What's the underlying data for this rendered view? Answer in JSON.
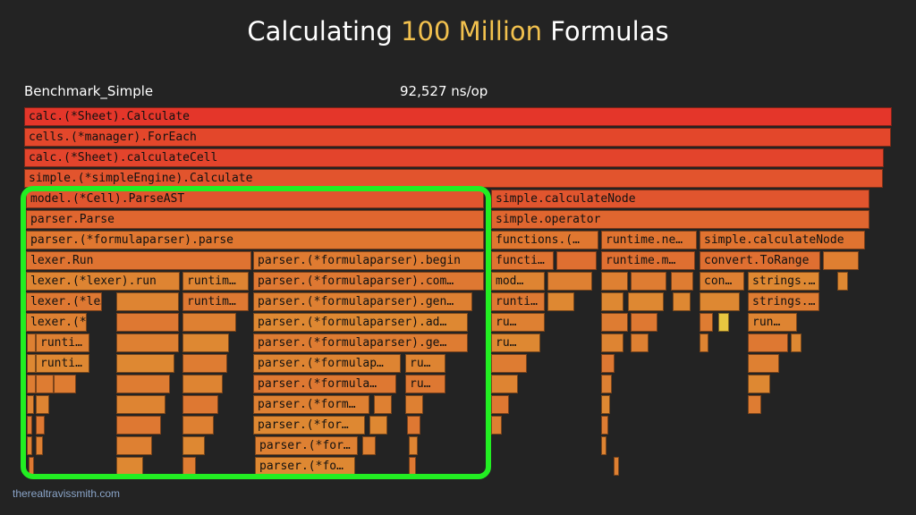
{
  "title": {
    "part1": "Calculating ",
    "highlight": "100 Million",
    "part2": " Formulas"
  },
  "benchmark": {
    "name": "Benchmark_Simple",
    "result": "92,527 ns/op"
  },
  "credit": "therealtravissmith.com",
  "colors": {
    "background": "#232323",
    "highlight_box": "#22ee22",
    "title_highlight": "#f2c14e"
  },
  "flame_labels": {
    "r0": "calc.(*Sheet).Calculate",
    "r1": "cells.(*manager).ForEach",
    "r2": "calc.(*Sheet).calculateCell",
    "r3": "simple.(*simpleEngine).Calculate",
    "r4a": "model.(*Cell).ParseAST",
    "r4b": "simple.calculateNode",
    "r5a": "parser.Parse",
    "r5b": "simple.operator",
    "r6a": "parser.(*formulaparser).parse",
    "r6b": "functions.(…",
    "r6c": "runtime.ne…",
    "r6d": "simple.calculateNode",
    "r7a": "lexer.Run",
    "r7b": "parser.(*formulaparser).begin",
    "r7c": "functi…",
    "r7d": "runtime.m…",
    "r7e": "convert.ToRange",
    "r8a": "lexer.(*lexer).run",
    "r8b": "runtim…",
    "r8c": "parser.(*formulaparser).com…",
    "r8d": "mod…",
    "r8e": "con…",
    "r8f": "strings.…",
    "r9a": "lexer.(*le…",
    "r9b": "runtim…",
    "r9c": "parser.(*formulaparser).gen…",
    "r9d": "runti…",
    "r9e": "strings.…",
    "r10a": "lexer.(*…",
    "r10b": "parser.(*formulaparser).ad…",
    "r10c": "ru…",
    "r10d": "run…",
    "r11a": "runti…",
    "r11b": "parser.(*formulaparser).ge…",
    "r11c": "ru…",
    "r12a": "runti…",
    "r12b": "parser.(*formulap…",
    "r12c": "ru…",
    "r13a": "parser.(*formula…",
    "r13b": "ru…",
    "r14a": "parser.(*form…",
    "r15a": "parser.(*for…",
    "r16a": "parser.(*for…",
    "r17a": "parser.(*fo…"
  }
}
